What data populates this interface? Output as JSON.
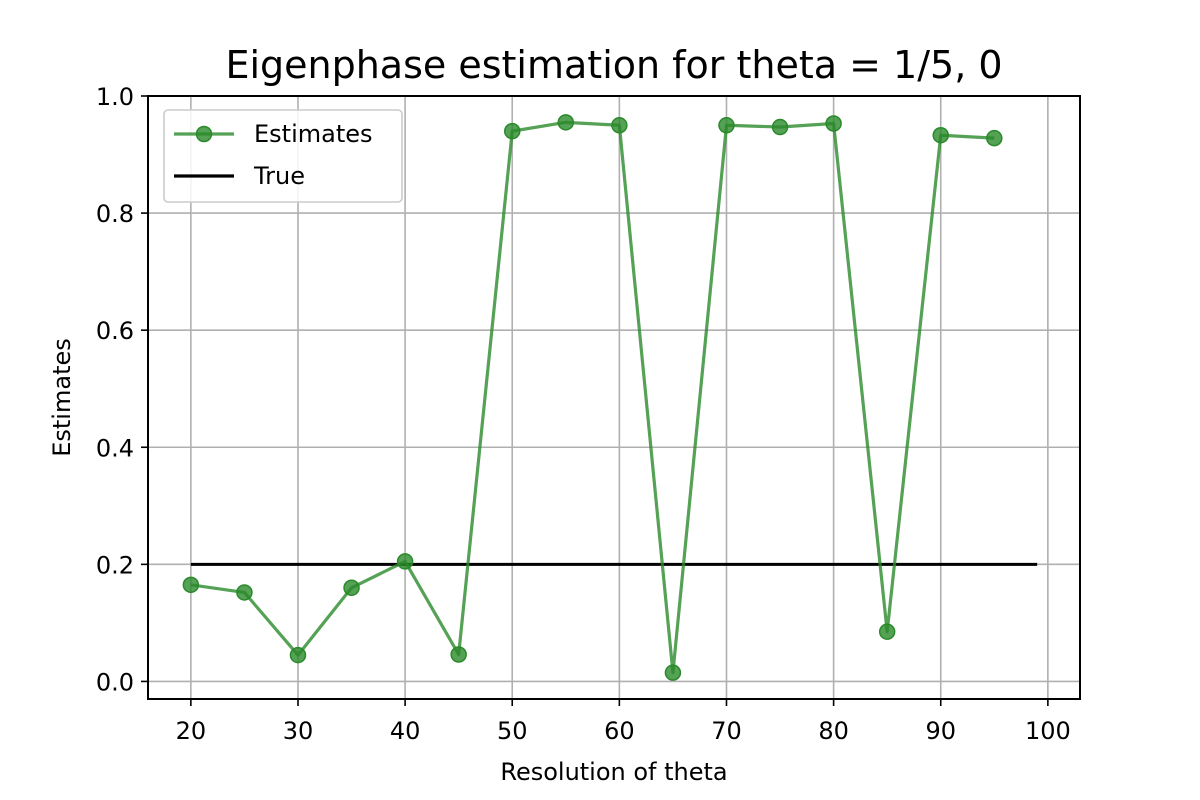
{
  "chart_data": {
    "type": "line",
    "title": "Eigenphase estimation for theta = 1/5, 0",
    "xlabel": "Resolution of theta",
    "ylabel": "Estimates",
    "xlim": [
      16,
      103
    ],
    "ylim": [
      -0.03,
      1.0
    ],
    "xticks": [
      20,
      30,
      40,
      50,
      60,
      70,
      80,
      90,
      100
    ],
    "yticks": [
      0.0,
      0.2,
      0.4,
      0.6,
      0.8,
      1.0
    ],
    "xtick_labels": [
      "20",
      "30",
      "40",
      "50",
      "60",
      "70",
      "80",
      "90",
      "100"
    ],
    "ytick_labels": [
      "0.0",
      "0.2",
      "0.4",
      "0.6",
      "0.8",
      "1.0"
    ],
    "grid": true,
    "legend_position": "top-left",
    "series": [
      {
        "name": "Estimates",
        "color": "#2a8a2a",
        "marker": "circle",
        "x": [
          20,
          25,
          30,
          35,
          40,
          45,
          50,
          55,
          60,
          65,
          70,
          75,
          80,
          85,
          90,
          95
        ],
        "y": [
          0.165,
          0.152,
          0.045,
          0.16,
          0.205,
          0.046,
          0.94,
          0.955,
          0.95,
          0.015,
          0.95,
          0.947,
          0.953,
          0.085,
          0.933,
          0.928
        ]
      },
      {
        "name": "True",
        "color": "#000000",
        "marker": "none",
        "x": [
          20,
          99
        ],
        "y": [
          0.2,
          0.2
        ]
      }
    ]
  }
}
